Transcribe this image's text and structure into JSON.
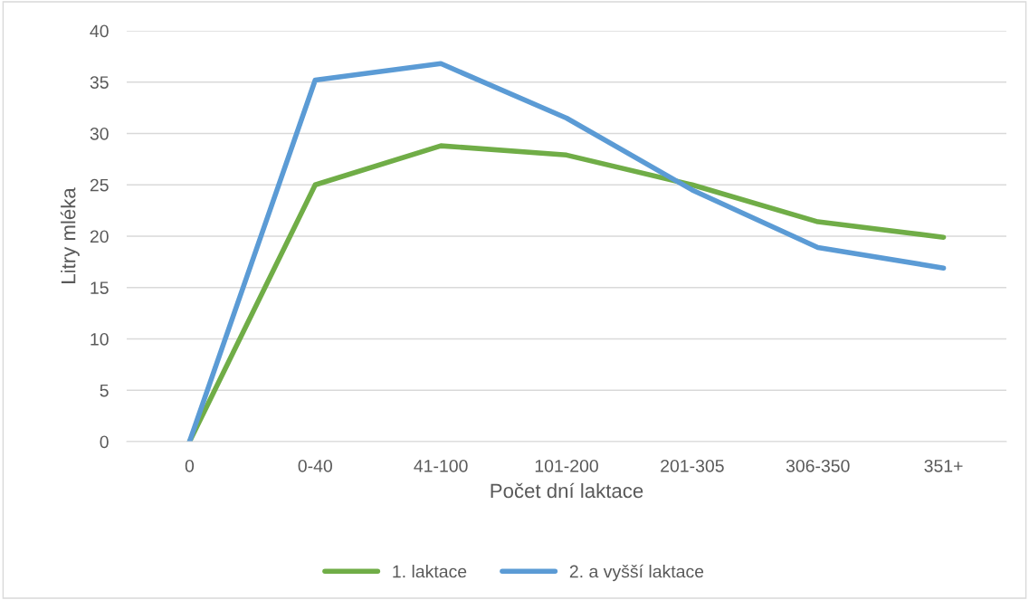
{
  "chart_data": {
    "type": "line",
    "xlabel": "Počet dní laktace",
    "ylabel": "Litry mléka",
    "categories": [
      "0",
      "0-40",
      "41-100",
      "101-200",
      "201-305",
      "306-350",
      "351+"
    ],
    "series": [
      {
        "name": "1. laktace",
        "color": "#70ad47",
        "values": [
          0,
          25,
          28.8,
          27.9,
          25,
          21.4,
          19.9
        ]
      },
      {
        "name": "2. a vyšší laktace",
        "color": "#5b9bd5",
        "values": [
          0,
          35.2,
          36.8,
          31.5,
          24.5,
          18.9,
          16.9
        ]
      }
    ],
    "ylim": [
      0,
      40
    ],
    "yticks": [
      0,
      5,
      10,
      15,
      20,
      25,
      30,
      35,
      40
    ],
    "grid": "y",
    "legend": "bottom",
    "marker": "none",
    "line_style": "solid"
  }
}
